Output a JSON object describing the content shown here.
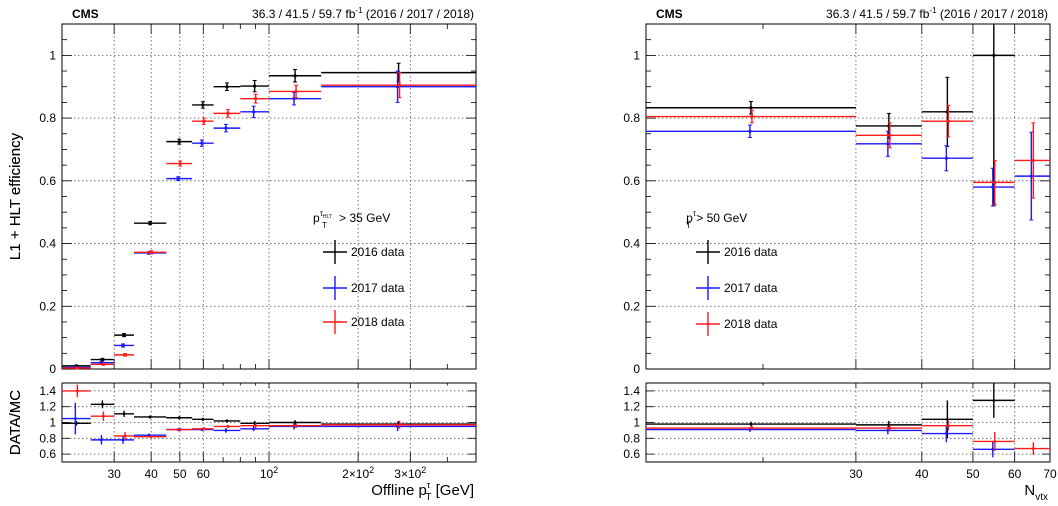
{
  "chart_data": [
    {
      "type": "scatter",
      "cms": "CMS",
      "lumi": "36.3 / 41.5 / 59.7 fb",
      "lumi_exp": "-1",
      "lumi_years": " (2016 / 2017 / 2018)",
      "xlabel_prefix": "Offline p",
      "xlabel_sub": "T",
      "xlabel_sup": "τ",
      "xlabel_suffix": " [GeV]",
      "ylabel": "L1 + HLT efficiency",
      "ratio_ylabel": "DATA/MC",
      "x_scale": "log",
      "xlim": [
        20,
        500
      ],
      "ylim": [
        0,
        1.1
      ],
      "ratio_ylim": [
        0.5,
        1.5
      ],
      "x_ticks": [
        {
          "v": 30,
          "label": "30"
        },
        {
          "v": 40,
          "label": "40"
        },
        {
          "v": 50,
          "label": "50"
        },
        {
          "v": 60,
          "label": "60"
        },
        {
          "v": 100,
          "label": "10",
          "exp": "2"
        },
        {
          "v": 200,
          "label": "2×10",
          "exp": "2"
        },
        {
          "v": 300,
          "label": "3×10",
          "exp": "2"
        }
      ],
      "y_ticks": [
        {
          "v": 0,
          "label": "0"
        },
        {
          "v": 0.2,
          "label": "0.2"
        },
        {
          "v": 0.4,
          "label": "0.4"
        },
        {
          "v": 0.6,
          "label": "0.6"
        },
        {
          "v": 0.8,
          "label": "0.8"
        },
        {
          "v": 1.0,
          "label": "1"
        }
      ],
      "ratio_ticks": [
        {
          "v": 0.6,
          "label": "0.6"
        },
        {
          "v": 0.8,
          "label": "0.8"
        },
        {
          "v": 1.0,
          "label": "1"
        },
        {
          "v": 1.2,
          "label": "1.2"
        },
        {
          "v": 1.4,
          "label": "1.4"
        }
      ],
      "legend_title_prefix": "p",
      "legend_title_sub": "T",
      "legend_title_sup": "τ",
      "legend_title_supsub": "HLT",
      "legend_title_suffix": " > 35 GeV",
      "legend_placement": "center-right",
      "grid": true,
      "series": [
        {
          "name": "2016 data",
          "color": "#000000",
          "bins": [
            [
              20,
              25
            ],
            [
              25,
              30
            ],
            [
              30,
              35
            ],
            [
              35,
              45
            ],
            [
              45,
              55
            ],
            [
              55,
              65
            ],
            [
              65,
              80
            ],
            [
              80,
              100
            ],
            [
              100,
              150
            ],
            [
              150,
              500
            ]
          ],
          "y": [
            0.01,
            0.03,
            0.108,
            0.465,
            0.725,
            0.842,
            0.9,
            0.902,
            0.935,
            0.945
          ],
          "yerr": [
            0.002,
            0.004,
            0.005,
            0.005,
            0.008,
            0.01,
            0.012,
            0.018,
            0.02,
            0.03
          ],
          "ratio": [
            0.99,
            1.23,
            1.11,
            1.07,
            1.06,
            1.04,
            1.02,
            0.99,
            1.0,
            0.98
          ],
          "ratio_err": [
            0.03,
            0.05,
            0.04,
            0.02,
            0.02,
            0.02,
            0.02,
            0.03,
            0.03,
            0.04
          ]
        },
        {
          "name": "2017 data",
          "color": "#1a1aff",
          "bins": [
            [
              20,
              25
            ],
            [
              25,
              30
            ],
            [
              30,
              35
            ],
            [
              35,
              45
            ],
            [
              45,
              55
            ],
            [
              55,
              65
            ],
            [
              65,
              80
            ],
            [
              80,
              100
            ],
            [
              100,
              150
            ],
            [
              150,
              500
            ]
          ],
          "y": [
            0.005,
            0.02,
            0.075,
            0.37,
            0.607,
            0.72,
            0.768,
            0.82,
            0.862,
            0.9
          ],
          "yerr": [
            0.002,
            0.003,
            0.005,
            0.004,
            0.006,
            0.01,
            0.012,
            0.018,
            0.02,
            0.05
          ],
          "ratio": [
            1.05,
            0.78,
            0.78,
            0.84,
            0.91,
            0.91,
            0.9,
            0.92,
            0.95,
            0.95
          ],
          "ratio_err": [
            0.2,
            0.06,
            0.05,
            0.02,
            0.02,
            0.02,
            0.03,
            0.03,
            0.04,
            0.06
          ]
        },
        {
          "name": "2018 data",
          "color": "#ff1a1a",
          "bins": [
            [
              20,
              25
            ],
            [
              25,
              30
            ],
            [
              30,
              35
            ],
            [
              35,
              45
            ],
            [
              45,
              55
            ],
            [
              55,
              65
            ],
            [
              65,
              80
            ],
            [
              80,
              100
            ],
            [
              100,
              150
            ],
            [
              150,
              500
            ]
          ],
          "y": [
            0.003,
            0.015,
            0.045,
            0.372,
            0.655,
            0.79,
            0.815,
            0.862,
            0.885,
            0.905
          ],
          "yerr": [
            0.002,
            0.003,
            0.004,
            0.005,
            0.008,
            0.01,
            0.012,
            0.014,
            0.02,
            0.04
          ],
          "ratio": [
            1.4,
            1.08,
            0.83,
            0.82,
            0.91,
            0.92,
            0.95,
            0.96,
            0.96,
            0.97
          ],
          "ratio_err": [
            0.08,
            0.06,
            0.05,
            0.02,
            0.02,
            0.02,
            0.02,
            0.03,
            0.03,
            0.05
          ]
        }
      ]
    },
    {
      "type": "scatter",
      "cms": "CMS",
      "lumi": "36.3 / 41.5 / 59.7 fb",
      "lumi_exp": "-1",
      "lumi_years": " (2016 / 2017 / 2018)",
      "xlabel_prefix": "N",
      "xlabel_sub": "vtx",
      "xlabel_sup": "",
      "xlabel_suffix": "",
      "ylabel": "L1 + HLT efficiency",
      "ratio_ylabel": "DATA/MC",
      "x_scale": "log",
      "xlim": [
        12,
        70
      ],
      "ylim": [
        0,
        1.1
      ],
      "ratio_ylim": [
        0.5,
        1.5
      ],
      "x_ticks": [
        {
          "v": 30,
          "label": "30"
        },
        {
          "v": 40,
          "label": "40"
        },
        {
          "v": 50,
          "label": "50"
        },
        {
          "v": 60,
          "label": "60"
        },
        {
          "v": 70,
          "label": "70"
        }
      ],
      "y_ticks": [
        {
          "v": 0,
          "label": "0"
        },
        {
          "v": 0.2,
          "label": "0.2"
        },
        {
          "v": 0.4,
          "label": "0.4"
        },
        {
          "v": 0.6,
          "label": "0.6"
        },
        {
          "v": 0.8,
          "label": "0.8"
        },
        {
          "v": 1.0,
          "label": "1"
        }
      ],
      "ratio_ticks": [
        {
          "v": 0.6,
          "label": "0.6"
        },
        {
          "v": 0.8,
          "label": "0.8"
        },
        {
          "v": 1.0,
          "label": "1"
        },
        {
          "v": 1.2,
          "label": "1.2"
        },
        {
          "v": 1.4,
          "label": "1.4"
        }
      ],
      "legend_title_prefix": "p",
      "legend_title_sub": "T",
      "legend_title_sup": "τ",
      "legend_title_supsub": "",
      "legend_title_suffix": " > 50 GeV",
      "legend_placement": "center-left",
      "grid": true,
      "series": [
        {
          "name": "2016 data",
          "color": "#000000",
          "bins": [
            [
              12,
              30
            ],
            [
              30,
              40
            ],
            [
              40,
              50
            ],
            [
              50,
              60
            ]
          ],
          "y": [
            0.833,
            0.775,
            0.82,
            1.0
          ],
          "yerr": [
            0.02,
            0.04,
            0.11,
            0.48
          ],
          "ratio": [
            0.98,
            0.97,
            1.04,
            1.28
          ],
          "ratio_err": [
            0.03,
            0.05,
            0.24,
            0.22
          ]
        },
        {
          "name": "2017 data",
          "color": "#1a1aff",
          "bins": [
            [
              12,
              30
            ],
            [
              30,
              40
            ],
            [
              40,
              50
            ],
            [
              50,
              60
            ],
            [
              60,
              70
            ]
          ],
          "y": [
            0.758,
            0.718,
            0.672,
            0.58,
            0.615
          ],
          "yerr": [
            0.02,
            0.04,
            0.04,
            0.06,
            0.14
          ],
          "ratio": [
            0.91,
            0.9,
            0.86,
            0.66,
            0.0
          ],
          "ratio_err": [
            0.03,
            0.05,
            0.11,
            0.1,
            0.0
          ]
        },
        {
          "name": "2018 data",
          "color": "#ff1a1a",
          "bins": [
            [
              12,
              30
            ],
            [
              30,
              40
            ],
            [
              40,
              50
            ],
            [
              50,
              60
            ],
            [
              60,
              70
            ]
          ],
          "y": [
            0.805,
            0.745,
            0.79,
            0.595,
            0.665
          ],
          "yerr": [
            0.02,
            0.04,
            0.05,
            0.07,
            0.12
          ],
          "ratio": [
            0.93,
            0.93,
            0.96,
            0.76,
            0.67
          ],
          "ratio_err": [
            0.03,
            0.04,
            0.06,
            0.12,
            0.08
          ]
        }
      ]
    }
  ]
}
